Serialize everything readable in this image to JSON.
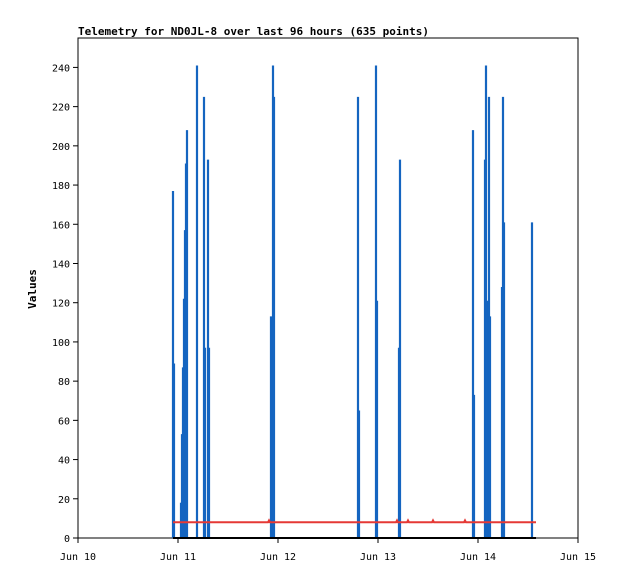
{
  "chart_data": {
    "type": "line",
    "title": "Telemetry for ND0JL-8 over last 96 hours (635 points)",
    "xlabel": "",
    "ylabel": "Values",
    "x_tick_labels": [
      "Jun 10",
      "Jun 11",
      "Jun 12",
      "Jun 13",
      "Jun 14",
      "Jun 15"
    ],
    "x_range_days": [
      10,
      15
    ],
    "y_tick_values": [
      0,
      20,
      40,
      60,
      80,
      100,
      120,
      140,
      160,
      180,
      200,
      220,
      240
    ],
    "ylim": [
      0,
      255
    ],
    "grid": false,
    "legend": "none",
    "series": [
      {
        "color": "#1565c0",
        "render": "spikes",
        "points": [
          {
            "x": 10.95,
            "y": 177
          },
          {
            "x": 10.96,
            "y": 89
          },
          {
            "x": 11.03,
            "y": 18
          },
          {
            "x": 11.04,
            "y": 53
          },
          {
            "x": 11.05,
            "y": 87
          },
          {
            "x": 11.06,
            "y": 122
          },
          {
            "x": 11.07,
            "y": 157
          },
          {
            "x": 11.08,
            "y": 191
          },
          {
            "x": 11.09,
            "y": 208
          },
          {
            "x": 11.19,
            "y": 241
          },
          {
            "x": 11.26,
            "y": 225
          },
          {
            "x": 11.27,
            "y": 97
          },
          {
            "x": 11.3,
            "y": 193
          },
          {
            "x": 11.31,
            "y": 97
          },
          {
            "x": 11.93,
            "y": 113
          },
          {
            "x": 11.95,
            "y": 241
          },
          {
            "x": 11.96,
            "y": 225
          },
          {
            "x": 12.8,
            "y": 225
          },
          {
            "x": 12.81,
            "y": 65
          },
          {
            "x": 12.98,
            "y": 241
          },
          {
            "x": 12.99,
            "y": 121
          },
          {
            "x": 13.21,
            "y": 97
          },
          {
            "x": 13.22,
            "y": 193
          },
          {
            "x": 13.95,
            "y": 208
          },
          {
            "x": 13.96,
            "y": 73
          },
          {
            "x": 14.07,
            "y": 193
          },
          {
            "x": 14.08,
            "y": 241
          },
          {
            "x": 14.09,
            "y": 121
          },
          {
            "x": 14.11,
            "y": 225
          },
          {
            "x": 14.12,
            "y": 113
          },
          {
            "x": 14.24,
            "y": 128
          },
          {
            "x": 14.25,
            "y": 225
          },
          {
            "x": 14.26,
            "y": 161
          },
          {
            "x": 14.54,
            "y": 161
          }
        ]
      },
      {
        "color": "#e53935",
        "render": "line",
        "points": [
          {
            "x": 10.95,
            "y": 8
          },
          {
            "x": 11.9,
            "y": 8
          },
          {
            "x": 11.91,
            "y": 9
          },
          {
            "x": 11.92,
            "y": 8
          },
          {
            "x": 13.18,
            "y": 8
          },
          {
            "x": 13.19,
            "y": 9
          },
          {
            "x": 13.2,
            "y": 8
          },
          {
            "x": 13.29,
            "y": 8
          },
          {
            "x": 13.3,
            "y": 9
          },
          {
            "x": 13.31,
            "y": 8
          },
          {
            "x": 13.54,
            "y": 8
          },
          {
            "x": 13.55,
            "y": 9
          },
          {
            "x": 13.56,
            "y": 8
          },
          {
            "x": 13.86,
            "y": 8
          },
          {
            "x": 13.87,
            "y": 9
          },
          {
            "x": 13.88,
            "y": 8
          },
          {
            "x": 14.58,
            "y": 8
          }
        ]
      },
      {
        "color": "#000000",
        "render": "line",
        "points": [
          {
            "x": 10.95,
            "y": 0
          },
          {
            "x": 14.58,
            "y": 0
          }
        ]
      }
    ]
  }
}
